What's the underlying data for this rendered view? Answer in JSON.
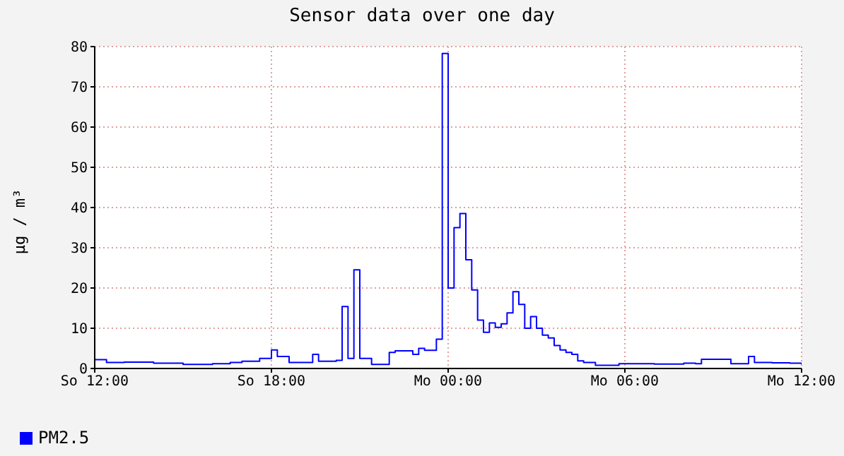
{
  "chart_data": {
    "type": "step",
    "title": "Sensor data over one day",
    "ylabel": "µg / m³",
    "categories": [
      "So 12:00",
      null,
      null,
      null,
      null,
      null,
      null,
      null,
      null,
      null,
      null,
      null,
      null,
      null,
      null,
      null,
      null,
      null,
      null,
      null,
      null,
      null,
      null,
      null,
      null,
      null,
      null,
      null,
      null,
      null,
      "So 18:00",
      null,
      null,
      null,
      null,
      null,
      null,
      null,
      null,
      null,
      null,
      null,
      null,
      null,
      null,
      null,
      null,
      null,
      null,
      null,
      null,
      null,
      null,
      null,
      null,
      null,
      null,
      null,
      null,
      null,
      "Mo 00:00",
      null,
      null,
      null,
      null,
      null,
      null,
      null,
      null,
      null,
      null,
      null,
      null,
      null,
      null,
      null,
      null,
      null,
      null,
      null,
      null,
      null,
      null,
      null,
      null,
      null,
      null,
      null,
      null,
      null,
      "Mo 06:00",
      null,
      null,
      null,
      null,
      null,
      null,
      null,
      null,
      null,
      null,
      null,
      null,
      null,
      null,
      null,
      null,
      null,
      null,
      null,
      null,
      null,
      null,
      null,
      null,
      null,
      null,
      null,
      null,
      null,
      "Mo 12:00"
    ],
    "ylim": [
      0,
      80
    ],
    "yticks": [
      0,
      10,
      20,
      30,
      40,
      50,
      60,
      70,
      80
    ],
    "grid": true,
    "legend": "bottom left",
    "line_style": "solid",
    "series": [
      {
        "name": "PM2.5",
        "color": "#0000ff",
        "values": [
          2.2,
          2.2,
          1.5,
          1.5,
          1.5,
          1.6,
          1.6,
          1.6,
          1.6,
          1.6,
          1.3,
          1.3,
          1.3,
          1.3,
          1.3,
          1,
          1,
          1,
          1,
          1,
          1.2,
          1.2,
          1.2,
          1.5,
          1.5,
          1.8,
          1.8,
          1.8,
          2.5,
          2.5,
          4.6,
          3,
          3,
          1.5,
          1.5,
          1.5,
          1.5,
          3.5,
          1.8,
          1.8,
          1.8,
          2,
          15.4,
          2.5,
          24.5,
          2.5,
          2.5,
          1,
          1,
          1,
          4,
          4.4,
          4.4,
          4.4,
          3.5,
          5,
          4.5,
          4.5,
          7.3,
          78.3,
          20,
          35,
          38.5,
          27,
          19.5,
          12,
          9,
          11.3,
          10.2,
          11.1,
          13.8,
          19.1,
          15.9,
          10,
          12.9,
          10,
          8.3,
          7.6,
          5.7,
          4.6,
          4,
          3.5,
          1.9,
          1.5,
          1.5,
          0.8,
          0.8,
          0.8,
          0.8,
          1.2,
          1.2,
          1.2,
          1.2,
          1.2,
          1.2,
          1.1,
          1.1,
          1.1,
          1.1,
          1.1,
          1.3,
          1.3,
          1.2,
          2.3,
          2.3,
          2.3,
          2.3,
          2.3,
          1.2,
          1.2,
          1.2,
          3,
          1.5,
          1.5,
          1.5,
          1.4,
          1.4,
          1.4,
          1.3,
          1.3,
          1
        ]
      }
    ]
  }
}
